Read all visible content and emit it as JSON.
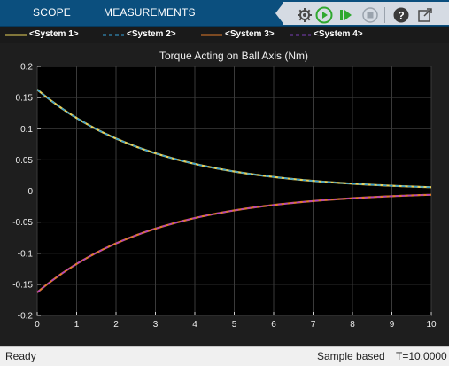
{
  "toolstrip": {
    "tabs": [
      {
        "label": "SCOPE"
      },
      {
        "label": "MEASUREMENTS"
      }
    ],
    "quick_access": [
      {
        "icon": "parameters-gear-icon"
      },
      {
        "icon": "run-icon",
        "color": "#2fa82f"
      },
      {
        "icon": "step-forward-icon",
        "color": "#2fa82f"
      },
      {
        "icon": "stop-icon",
        "color": "#9aa3ad"
      },
      {
        "icon": "help-icon"
      },
      {
        "icon": "undock-icon"
      }
    ]
  },
  "legend": {
    "entries": [
      {
        "label": "<System 1>",
        "color": "#e8d15a",
        "style": "solid"
      },
      {
        "label": "<System 2>",
        "color": "#37a2d8",
        "style": "dashed"
      },
      {
        "label": "<System 3>",
        "color": "#e07b2a",
        "style": "solid"
      },
      {
        "label": "<System 4>",
        "color": "#7b3fb6",
        "style": "dashed"
      }
    ]
  },
  "chart_data": {
    "type": "line",
    "title": "Torque Acting on Ball Axis (Nm)",
    "xlabel": "",
    "ylabel": "",
    "xlim": [
      0,
      10
    ],
    "ylim": [
      -0.2,
      0.2
    ],
    "xticks": [
      "0",
      "1",
      "2",
      "3",
      "4",
      "5",
      "6",
      "7",
      "8",
      "9",
      "10"
    ],
    "yticks": [
      "0.2",
      "0.15",
      "0.1",
      "0.05",
      "0",
      "-0.05",
      "-0.1",
      "-0.15",
      "-0.2"
    ],
    "grid": true,
    "background": "#000000",
    "x": [
      0,
      1,
      2,
      3,
      4,
      5,
      6,
      7,
      8,
      9,
      10
    ],
    "series": [
      {
        "name": "<System 1>",
        "color": "#e8d15a",
        "style": "solid",
        "values": [
          0.163,
          0.116,
          0.083,
          0.06,
          0.043,
          0.031,
          0.022,
          0.016,
          0.012,
          0.009,
          0.006
        ]
      },
      {
        "name": "<System 2>",
        "color": "#37a2d8",
        "style": "dashed",
        "values": [
          0.163,
          0.116,
          0.083,
          0.06,
          0.043,
          0.031,
          0.022,
          0.016,
          0.012,
          0.009,
          0.006
        ]
      },
      {
        "name": "<System 3>",
        "color": "#e07b2a",
        "style": "solid",
        "values": [
          -0.163,
          -0.116,
          -0.083,
          -0.06,
          -0.043,
          -0.031,
          -0.022,
          -0.016,
          -0.012,
          -0.009,
          -0.006
        ]
      },
      {
        "name": "<System 4>",
        "color": "#b040c8",
        "style": "dashed",
        "values": [
          -0.163,
          -0.116,
          -0.083,
          -0.06,
          -0.043,
          -0.031,
          -0.022,
          -0.016,
          -0.012,
          -0.009,
          -0.006
        ]
      }
    ]
  },
  "statusbar": {
    "status": "Ready",
    "mode": "Sample based",
    "time": "T=10.0000"
  }
}
